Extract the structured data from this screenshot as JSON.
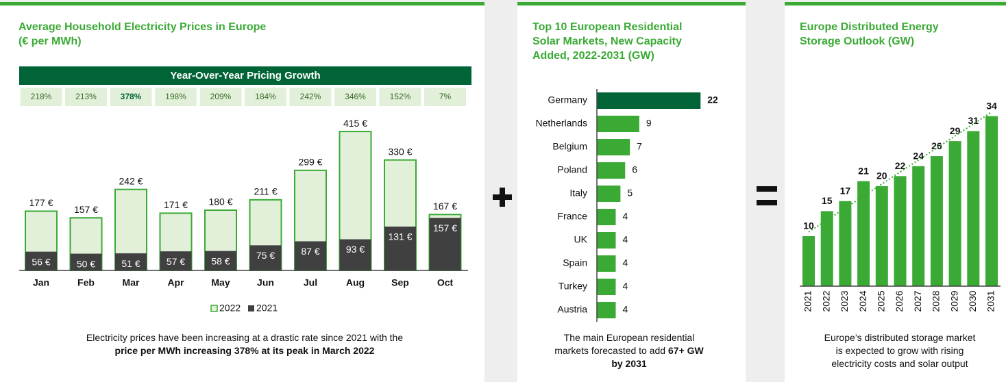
{
  "chart_data": [
    {
      "type": "bar",
      "title": [
        "Average Household Electricity Prices in Europe",
        "(€ per MWh)"
      ],
      "categories": [
        "Jan",
        "Feb",
        "Mar",
        "Apr",
        "May",
        "Jun",
        "Jul",
        "Aug",
        "Sep",
        "Oct"
      ],
      "series": [
        {
          "name": "2022",
          "color": "#e2f0d9",
          "stroke": "#3aaa35",
          "values": [
            177,
            157,
            242,
            171,
            180,
            211,
            299,
            415,
            330,
            167
          ],
          "value_labels": [
            "177 €",
            "157 €",
            "242 €",
            "171 €",
            "180 €",
            "211 €",
            "299 €",
            "415 €",
            "330 €",
            "167 €"
          ]
        },
        {
          "name": "2021",
          "color": "#404040",
          "values": [
            56,
            50,
            51,
            57,
            58,
            75,
            87,
            93,
            131,
            157
          ],
          "value_labels": [
            "56 €",
            "50 €",
            "51 €",
            "57 €",
            "58 €",
            "75 €",
            "87 €",
            "93 €",
            "131 €",
            "157 €"
          ]
        }
      ],
      "ylim": [
        0,
        450
      ],
      "legend": "bottom",
      "caption": [
        [
          {
            "text": "Electricity prices have been increasing at a drastic rate since 2021 with the",
            "bold": false
          }
        ],
        [
          {
            "text": "price per MWh increasing 378% at its peak in March 2022",
            "bold": true
          }
        ]
      ]
    },
    {
      "type": "barh",
      "title": [
        "Top 10 European Residential",
        "Solar Markets, New Capacity",
        "Added, 2022-2031 (GW)"
      ],
      "categories": [
        "Germany",
        "Netherlands",
        "Belgium",
        "Poland",
        "Italy",
        "France",
        "UK",
        "Spain",
        "Turkey",
        "Austria"
      ],
      "values": [
        22,
        9,
        7,
        6,
        5,
        4,
        4,
        4,
        4,
        4
      ],
      "color": "#3aaa35",
      "highlight_color": "#006437",
      "highlight_index": 0,
      "xlim": [
        0,
        24
      ],
      "caption": [
        [
          {
            "text": "The main European residential",
            "bold": false
          }
        ],
        [
          {
            "text": "markets forecasted to add ",
            "bold": false
          },
          {
            "text": "67+ GW",
            "bold": true
          }
        ],
        [
          {
            "text": "by 2031",
            "bold": true
          }
        ]
      ]
    },
    {
      "type": "bar",
      "title": [
        "Europe Distributed Energy",
        "Storage Outlook (GW)"
      ],
      "categories": [
        "2021",
        "2022",
        "2023",
        "2024",
        "2025",
        "2026",
        "2027",
        "2028",
        "2029",
        "2030",
        "2031"
      ],
      "values": [
        10,
        15,
        17,
        21,
        20,
        22,
        24,
        26,
        29,
        31,
        34
      ],
      "color": "#3aaa35",
      "ylim": [
        0,
        36
      ],
      "trendline": true,
      "caption": [
        [
          {
            "text": "Europe’s distributed storage market",
            "bold": false
          }
        ],
        [
          {
            "text": "is expected to grow with rising",
            "bold": false
          }
        ],
        [
          {
            "text": "electricity costs and solar output",
            "bold": false
          }
        ]
      ]
    }
  ],
  "growth_table": {
    "header": "Year-Over-Year Pricing Growth",
    "cells": [
      "218%",
      "213%",
      "378%",
      "198%",
      "209%",
      "184%",
      "242%",
      "346%",
      "152%",
      "7%"
    ],
    "highlight_index": 2
  }
}
